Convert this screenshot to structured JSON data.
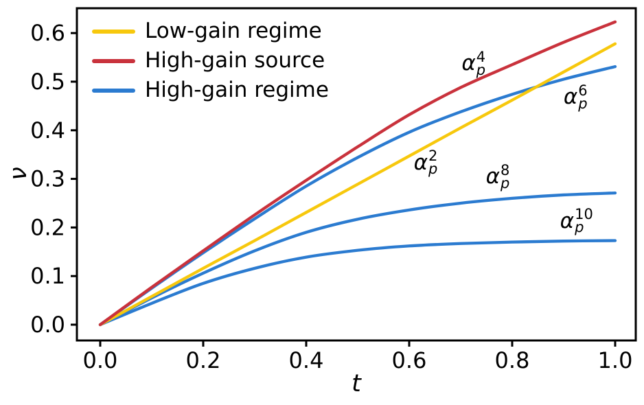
{
  "chart_data": {
    "type": "line",
    "title": "",
    "xlabel": "t",
    "ylabel": "ν",
    "grid": false,
    "legend_position": "upper-left",
    "xlim": [
      -0.0453,
      1.04
    ],
    "ylim": [
      -0.0325,
      0.6511
    ],
    "xticks": [
      0.0,
      0.2,
      0.4,
      0.6,
      0.8,
      1.0
    ],
    "xtick_labels": [
      "0.0",
      "0.2",
      "0.4",
      "0.6",
      "0.8",
      "1.0"
    ],
    "yticks": [
      0.0,
      0.1,
      0.2,
      0.3,
      0.4,
      0.5,
      0.6
    ],
    "ytick_labels": [
      "0.0",
      "0.1",
      "0.2",
      "0.3",
      "0.4",
      "0.5",
      "0.6"
    ],
    "x": [
      0,
      0.1,
      0.2,
      0.3,
      0.4,
      0.5,
      0.6,
      0.7,
      0.8,
      0.9,
      1.0
    ],
    "series": [
      {
        "name": "alpha_p^2",
        "legend": "Low-gain regime",
        "color": "#F7C80D",
        "values": [
          0,
          0.058,
          0.116,
          0.173,
          0.231,
          0.289,
          0.347,
          0.405,
          0.462,
          0.52,
          0.578
        ]
      },
      {
        "name": "alpha_p^4",
        "legend": "High-gain source",
        "color": "#C9323C",
        "values": [
          0,
          0.077,
          0.152,
          0.226,
          0.297,
          0.366,
          0.432,
          0.488,
          0.535,
          0.581,
          0.623
        ]
      },
      {
        "name": "alpha_p^6",
        "legend": "High-gain regime",
        "color": "#2B7BD0",
        "values": [
          0,
          0.075,
          0.148,
          0.218,
          0.285,
          0.344,
          0.396,
          0.438,
          0.474,
          0.505,
          0.531
        ]
      },
      {
        "name": "alpha_p^8",
        "legend": "",
        "color": "#2B7BD0",
        "values": [
          0,
          0.055,
          0.106,
          0.152,
          0.19,
          0.217,
          0.236,
          0.25,
          0.26,
          0.267,
          0.271
        ]
      },
      {
        "name": "alpha_p^10",
        "legend": "",
        "color": "#2B7BD0",
        "values": [
          0,
          0.044,
          0.085,
          0.116,
          0.139,
          0.153,
          0.162,
          0.167,
          0.17,
          0.172,
          0.173
        ]
      }
    ],
    "annotations": [
      {
        "base": "α",
        "sub": "p",
        "sup": "2",
        "t": 0.632,
        "nu": 0.333
      },
      {
        "base": "α",
        "sub": "p",
        "sup": "4",
        "t": 0.725,
        "nu": 0.537
      },
      {
        "base": "α",
        "sub": "p",
        "sup": "6",
        "t": 0.923,
        "nu": 0.468
      },
      {
        "base": "α",
        "sub": "p",
        "sup": "8",
        "t": 0.772,
        "nu": 0.304
      },
      {
        "base": "α",
        "sub": "p",
        "sup": "10",
        "t": 0.925,
        "nu": 0.213
      }
    ]
  }
}
